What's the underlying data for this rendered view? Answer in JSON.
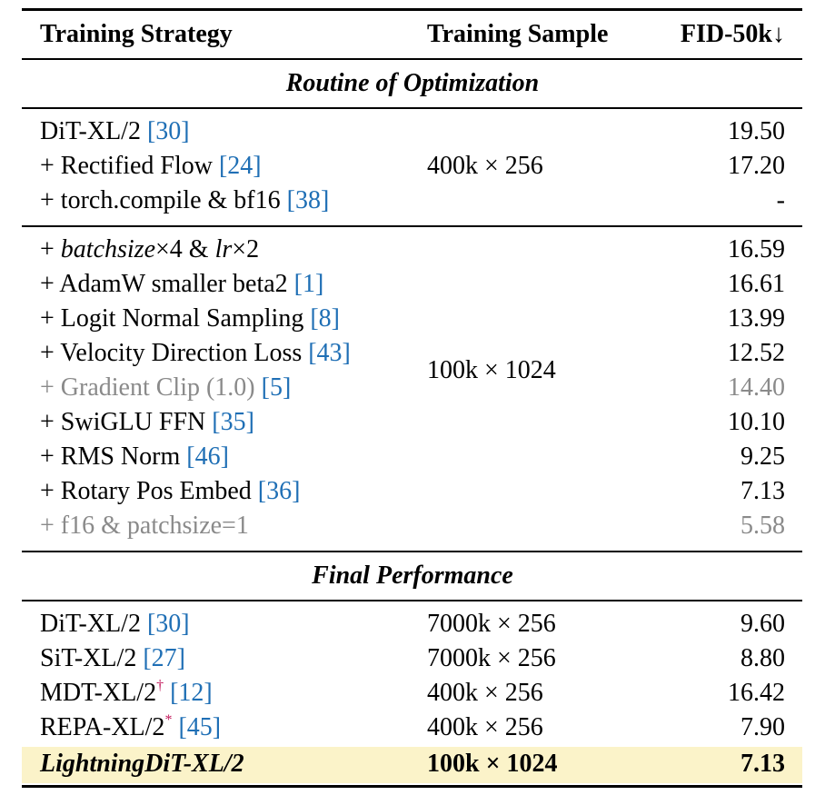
{
  "header": {
    "col1": "Training Strategy",
    "col2": "Training Sample",
    "col3": "FID-50k↓"
  },
  "sections": {
    "routine": "Routine of Optimization",
    "final": "Final Performance"
  },
  "group1": {
    "sample": "400k × 256",
    "rows": [
      {
        "label": "DiT-XL/2 ",
        "cite": "[30]",
        "fid": "19.50"
      },
      {
        "label": "+ Rectified Flow ",
        "cite": "[24]",
        "fid": "17.20"
      },
      {
        "label": "+ torch.compile & bf16 ",
        "cite": "[38]",
        "fid": "-"
      }
    ]
  },
  "group2": {
    "sample": "100k × 1024",
    "rows": [
      {
        "label_pre": "+ ",
        "label_i1": "batchsize",
        "label_m1": "×4 & ",
        "label_i2": "lr",
        "label_m2": "×2",
        "fid": "16.59"
      },
      {
        "label": "+ AdamW smaller beta2 ",
        "cite": "[1]",
        "fid": "16.61"
      },
      {
        "label": "+ Logit Normal Sampling ",
        "cite": "[8]",
        "fid": "13.99"
      },
      {
        "label": "+ Velocity Direction Loss ",
        "cite": "[43]",
        "fid": "12.52"
      },
      {
        "label": "+ Gradient Clip (1.0) ",
        "cite": "[5]",
        "fid": "14.40"
      },
      {
        "label": "+ SwiGLU FFN ",
        "cite": "[35]",
        "fid": "10.10"
      },
      {
        "label": "+ RMS Norm ",
        "cite": "[46]",
        "fid": "9.25"
      },
      {
        "label": "+ Rotary Pos Embed ",
        "cite": "[36]",
        "fid": "7.13"
      },
      {
        "label": "+ f16 & patchsize=1",
        "fid": "5.58"
      }
    ]
  },
  "group3": {
    "rows": [
      {
        "label": "DiT-XL/2 ",
        "cite": "[30]",
        "sample": "7000k × 256",
        "fid": "9.60"
      },
      {
        "label": "SiT-XL/2 ",
        "cite": "[27]",
        "sample": "7000k × 256",
        "fid": "8.80"
      },
      {
        "label": "MDT-XL/2",
        "sup": "†",
        "cite": "[12]",
        "sample": "400k × 256",
        "fid": "16.42"
      },
      {
        "label": "REPA-XL/2",
        "sup": "*",
        "cite": "[45]",
        "sample": "400k × 256",
        "fid": "7.90"
      },
      {
        "label": "LightningDiT-XL/2",
        "sample": "100k × 1024",
        "fid": "7.13"
      }
    ]
  }
}
